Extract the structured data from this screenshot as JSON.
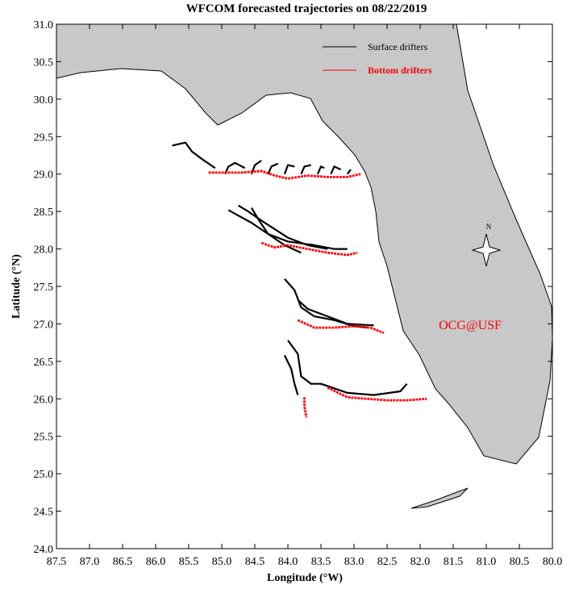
{
  "chart_data": {
    "type": "trajectory",
    "title": "WFCOM forecasted trajectories on 08/22/2019",
    "x_label": "Longitude (°W)",
    "y_label": "Latitude (°N)",
    "xlim": [
      87.5,
      80.0
    ],
    "ylim": [
      24.0,
      31.0
    ],
    "xticks": [
      87.5,
      {
        "value": 87,
        "label": "87.0"
      },
      86.5,
      {
        "value": 86,
        "label": "86.0"
      },
      85.5,
      {
        "value": 85,
        "label": "85.0"
      },
      84.5,
      {
        "value": 84,
        "label": "84.0"
      },
      83.5,
      {
        "value": 83,
        "label": "83.0"
      },
      82.5,
      {
        "value": 82,
        "label": "82.0"
      },
      81.5,
      {
        "value": 81,
        "label": "81.0"
      },
      80.5,
      {
        "value": 80,
        "label": "80.0"
      }
    ],
    "yticks": [
      {
        "value": 24,
        "label": "24.0"
      },
      24.5,
      {
        "value": 25,
        "label": "25.0"
      },
      25.5,
      {
        "value": 26,
        "label": "26.0"
      },
      26.5,
      {
        "value": 27,
        "label": "27.0"
      },
      27.5,
      {
        "value": 28,
        "label": "28.0"
      },
      28.5,
      {
        "value": 29,
        "label": "29.0"
      },
      29.5,
      {
        "value": 30,
        "label": "30.0"
      },
      30.5,
      {
        "value": 31,
        "label": "31.0"
      }
    ],
    "annotation": "OCG@USF",
    "compass_label": "N",
    "series": [
      {
        "name": "Surface drifters",
        "color": "#000000",
        "x": [
          85.75,
          85.55,
          85.45,
          85.3,
          85.1,
          null,
          84.95,
          84.9,
          84.8,
          84.65,
          null,
          84.55,
          84.5,
          84.4,
          null,
          84.3,
          84.25,
          84.15,
          null,
          84.05,
          84.0,
          83.9,
          null,
          83.8,
          83.75,
          83.65,
          null,
          83.55,
          83.5,
          83.45,
          null,
          83.35,
          83.3,
          83.2,
          null,
          83.1,
          83.05,
          null,
          84.9,
          84.8,
          84.55,
          84.3,
          84.0,
          83.6,
          83.3,
          83.1,
          null,
          84.75,
          84.6,
          84.35,
          84.0,
          83.7,
          83.4,
          null,
          84.55,
          84.45,
          84.3,
          84.05,
          83.8,
          null,
          84.05,
          83.9,
          83.8,
          83.6,
          83.3,
          83.0,
          82.8,
          null,
          83.85,
          83.7,
          83.4,
          83.1,
          82.7,
          null,
          84.0,
          83.85,
          83.8,
          83.65,
          83.5,
          83.1,
          82.7,
          82.3,
          82.2,
          null,
          84.05,
          83.95,
          83.9,
          83.85
        ],
        "y": [
          29.38,
          29.42,
          29.3,
          29.2,
          29.08,
          null,
          29.0,
          29.1,
          29.15,
          29.08,
          null,
          29.0,
          29.12,
          29.18,
          null,
          29.0,
          29.1,
          29.14,
          null,
          29.0,
          29.12,
          29.1,
          null,
          29.0,
          29.1,
          29.12,
          null,
          29.0,
          29.1,
          29.08,
          null,
          29.0,
          29.1,
          29.06,
          null,
          29.0,
          29.06,
          null,
          28.52,
          28.47,
          28.35,
          28.2,
          28.1,
          28.05,
          28.0,
          28.0,
          null,
          28.58,
          28.5,
          28.35,
          28.15,
          28.05,
          28.0,
          null,
          28.55,
          28.4,
          28.2,
          28.05,
          27.95,
          null,
          27.6,
          27.45,
          27.22,
          27.1,
          27.05,
          26.97,
          26.95,
          null,
          27.32,
          27.2,
          27.1,
          27.0,
          26.98,
          null,
          26.78,
          26.6,
          26.3,
          26.2,
          26.2,
          26.08,
          26.05,
          26.1,
          26.2,
          null,
          26.58,
          26.4,
          26.2,
          26.05
        ]
      },
      {
        "name": "Bottom drifters",
        "color": "#ff0000",
        "x": [
          85.2,
          85.0,
          84.7,
          84.4,
          84.2,
          84.0,
          83.7,
          83.4,
          83.1,
          82.9,
          null,
          84.4,
          84.2,
          84.0,
          83.7,
          83.4,
          83.1,
          82.95,
          null,
          83.85,
          83.6,
          83.3,
          83.0,
          82.75,
          82.55,
          null,
          83.75,
          83.75,
          83.72,
          null,
          83.4,
          83.1,
          82.8,
          82.5,
          82.2,
          81.9
        ],
        "y": [
          29.02,
          29.02,
          29.02,
          29.04,
          28.98,
          28.94,
          28.98,
          28.96,
          28.96,
          29.0,
          null,
          28.08,
          28.02,
          28.05,
          28.0,
          27.95,
          27.92,
          27.95,
          null,
          27.05,
          26.95,
          26.95,
          26.97,
          26.95,
          26.88,
          null,
          26.02,
          25.9,
          25.75,
          null,
          26.15,
          26.02,
          26.0,
          25.98,
          25.98,
          26.0
        ]
      }
    ]
  }
}
